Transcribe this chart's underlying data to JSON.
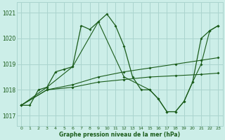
{
  "bg_color": "#cceee8",
  "grid_color": "#aad4ce",
  "line_color_dark": "#1a5c1a",
  "line_color_medium": "#2e7d32",
  "xlabel": "Graphe pression niveau de la mer (hPa)",
  "ylim": [
    1016.6,
    1021.4
  ],
  "xlim": [
    -0.5,
    23.5
  ],
  "yticks": [
    1017,
    1018,
    1019,
    1020,
    1021
  ],
  "xticks": [
    0,
    1,
    2,
    3,
    4,
    5,
    6,
    7,
    8,
    9,
    10,
    11,
    12,
    13,
    14,
    15,
    16,
    17,
    18,
    19,
    20,
    21,
    22,
    23
  ],
  "series_main": {
    "x": [
      0,
      1,
      2,
      3,
      4,
      5,
      6,
      7,
      8,
      9,
      10,
      11,
      12,
      13,
      14,
      15,
      16,
      17,
      18,
      19,
      20,
      21,
      22,
      23
    ],
    "y": [
      1017.4,
      1017.4,
      1018.0,
      1018.1,
      1018.7,
      1018.8,
      1018.9,
      1020.5,
      1020.35,
      1020.65,
      1020.95,
      1020.5,
      1019.7,
      1018.5,
      1018.0,
      1018.0,
      1017.65,
      1017.15,
      1017.15,
      1017.55,
      1018.3,
      1020.0,
      1020.3,
      1020.5
    ]
  },
  "series_sparse_dip": {
    "x": [
      0,
      3,
      6,
      9,
      12,
      15,
      16,
      17,
      18,
      19,
      20,
      21,
      22,
      23
    ],
    "y": [
      1017.4,
      1018.1,
      1018.9,
      1020.65,
      1018.5,
      1018.0,
      1017.65,
      1017.15,
      1017.15,
      1017.55,
      1018.3,
      1019.0,
      1020.3,
      1020.5
    ]
  },
  "series_flat1": {
    "x": [
      0,
      3,
      6,
      9,
      12,
      15,
      18,
      21,
      23
    ],
    "y": [
      1017.4,
      1018.0,
      1018.1,
      1018.3,
      1018.4,
      1018.5,
      1018.55,
      1018.6,
      1018.65
    ]
  },
  "series_flat2": {
    "x": [
      0,
      3,
      6,
      9,
      12,
      15,
      18,
      21,
      23
    ],
    "y": [
      1017.4,
      1018.0,
      1018.2,
      1018.5,
      1018.7,
      1018.85,
      1019.0,
      1019.15,
      1019.25
    ]
  }
}
